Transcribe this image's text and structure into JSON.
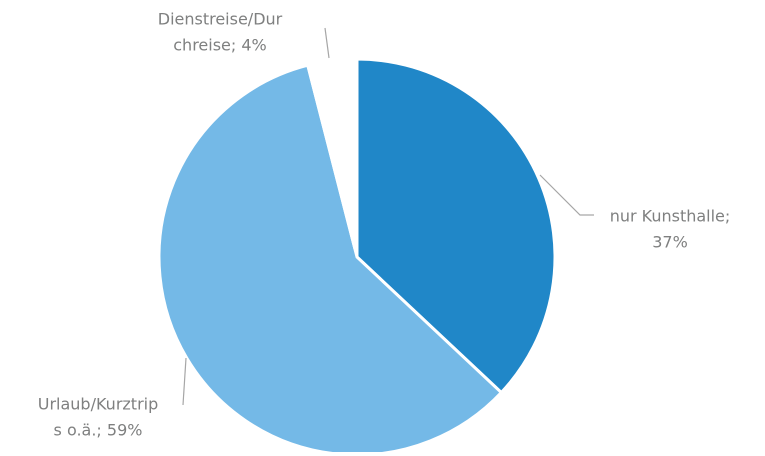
{
  "chart_data": {
    "type": "pie",
    "values": [
      37,
      59,
      4
    ],
    "value_labels": [
      [
        "nur Kunsthalle;",
        "37%"
      ],
      [
        "Urlaub/Kurztrip",
        "s o.ä.; 59%"
      ],
      [
        "Dienstreise/Dur",
        "chreise; 4%"
      ]
    ],
    "colors": [
      "#2087c8",
      "#74b9e7",
      "#ffffff"
    ]
  }
}
